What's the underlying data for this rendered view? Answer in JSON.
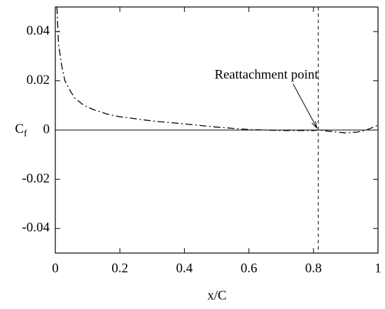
{
  "chart_data": {
    "type": "line",
    "xlabel": "x/C",
    "ylabel": "C",
    "ylabel_subscript": "f",
    "x": [
      0.005,
      0.01,
      0.02,
      0.03,
      0.046,
      0.06,
      0.089,
      0.12,
      0.16,
      0.2,
      0.3,
      0.4,
      0.5,
      0.6,
      0.7,
      0.8,
      0.815,
      0.85,
      0.87,
      0.9,
      0.93,
      0.95,
      0.97,
      1.0
    ],
    "series": [
      {
        "color": "#000000",
        "values": [
          0.05,
          0.035,
          0.026,
          0.02,
          0.016,
          0.013,
          0.01,
          0.0082,
          0.0065,
          0.0054,
          0.0037,
          0.0025,
          0.0012,
          0.0002,
          -0.0002,
          -0.0002,
          0,
          -0.0005,
          -0.0008,
          -0.0012,
          -0.0009,
          -0.0005,
          0.0003,
          0.002
        ]
      }
    ],
    "xlim": [
      0,
      1
    ],
    "xticks": [
      0,
      0.2,
      0.4,
      0.6,
      0.8,
      1
    ],
    "ylim": [
      -0.05,
      0.05
    ],
    "yticks": [
      -0.04,
      -0.02,
      0,
      0.02,
      0.04
    ],
    "zero_line": true,
    "annotation": {
      "text": "Reattachment point",
      "x": 0.815,
      "y": 0
    }
  }
}
